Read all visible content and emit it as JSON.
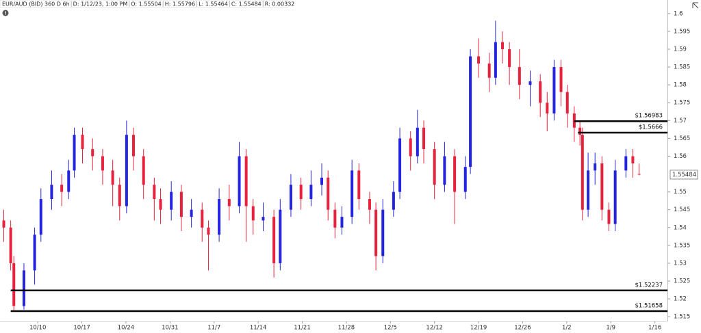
{
  "header": {
    "items": [
      "EUR/AUD (BID) 360 D 6h",
      "D: 1/12/23, 1:00 PM",
      "O: 1.55504",
      "H: 1.55796",
      "L: 1.55464",
      "C: 1.55484",
      "R: 0.00332"
    ]
  },
  "chart_data": {
    "type": "candlestick",
    "up_color": "#2424e0",
    "down_color": "#e8213c",
    "xlim": [
      -6,
      100
    ],
    "ylim": [
      1.5137,
      1.6038
    ],
    "xticks": [
      {
        "value": 0,
        "label": "10/10"
      },
      {
        "value": 7,
        "label": "10/17"
      },
      {
        "value": 14,
        "label": "10/24"
      },
      {
        "value": 21,
        "label": "10/31"
      },
      {
        "value": 28,
        "label": "11/7"
      },
      {
        "value": 35,
        "label": "11/14"
      },
      {
        "value": 42,
        "label": "11/21"
      },
      {
        "value": 49,
        "label": "11/28"
      },
      {
        "value": 56,
        "label": "12/5"
      },
      {
        "value": 63,
        "label": "12/12"
      },
      {
        "value": 70,
        "label": "12/19"
      },
      {
        "value": 77,
        "label": "12/26"
      },
      {
        "value": 84,
        "label": "1/2"
      },
      {
        "value": 91,
        "label": "1/9"
      },
      {
        "value": 98,
        "label": "1/16"
      }
    ],
    "yticks": [
      1.6,
      1.595,
      1.59,
      1.585,
      1.58,
      1.575,
      1.57,
      1.565,
      1.56,
      1.55,
      1.545,
      1.54,
      1.535,
      1.53,
      1.525,
      1.52,
      1.515
    ],
    "last_price_label": "1.55484",
    "x": [
      -5.4,
      -4.3,
      -3.8,
      -2.2,
      -0.5,
      0.5,
      2.2,
      3.8,
      4.9,
      5.8,
      7.1,
      8.7,
      10.3,
      11.9,
      13.0,
      14.1,
      15.2,
      16.8,
      18.5,
      19.5,
      21.2,
      22.8,
      24.4,
      26.1,
      27.1,
      28.8,
      30.4,
      32.0,
      33.1,
      34.2,
      35.8,
      37.5,
      38.5,
      40.2,
      41.8,
      43.4,
      45.1,
      46.1,
      47.2,
      48.3,
      49.9,
      51.0,
      52.7,
      53.7,
      54.8,
      56.5,
      57.5,
      59.2,
      60.3,
      61.3,
      63.0,
      64.6,
      66.2,
      67.9,
      68.7,
      70.0,
      71.7,
      72.7,
      73.8,
      74.9,
      76.5,
      78.2,
      79.8,
      80.9,
      82.0,
      83.1,
      84.1,
      85.2,
      86.1,
      86.5,
      87.4,
      88.5,
      89.6,
      90.7,
      91.7,
      93.4,
      94.5,
      95.5
    ],
    "open": [
      1.542,
      1.54,
      1.53,
      1.518,
      1.528,
      1.538,
      1.548,
      1.552,
      1.55,
      1.556,
      1.566,
      1.562,
      1.56,
      1.556,
      1.552,
      1.546,
      1.566,
      1.56,
      1.552,
      1.548,
      1.545,
      1.55,
      1.543,
      1.545,
      1.54,
      1.538,
      1.548,
      1.546,
      1.56,
      1.546,
      1.542,
      1.543,
      1.53,
      1.545,
      1.552,
      1.548,
      1.552,
      1.554,
      1.545,
      1.54,
      1.543,
      1.556,
      1.548,
      1.545,
      1.532,
      1.545,
      1.55,
      1.565,
      1.56,
      1.568,
      1.562,
      1.552,
      1.56,
      1.55,
      1.557,
      1.588,
      1.586,
      1.582,
      1.592,
      1.59,
      1.585,
      1.58,
      1.581,
      1.575,
      1.572,
      1.585,
      1.578,
      1.572,
      1.568,
      1.566,
      1.545,
      1.556,
      1.558,
      1.545,
      1.541,
      1.556,
      1.56,
      1.55504
    ],
    "high": [
      1.545,
      1.542,
      1.532,
      1.53,
      1.54,
      1.551,
      1.556,
      1.555,
      1.559,
      1.568,
      1.568,
      1.565,
      1.562,
      1.559,
      1.554,
      1.57,
      1.568,
      1.562,
      1.554,
      1.551,
      1.553,
      1.552,
      1.548,
      1.547,
      1.542,
      1.551,
      1.552,
      1.564,
      1.562,
      1.548,
      1.547,
      1.545,
      1.548,
      1.555,
      1.554,
      1.556,
      1.558,
      1.556,
      1.547,
      1.546,
      1.559,
      1.558,
      1.55,
      1.547,
      1.548,
      1.553,
      1.568,
      1.567,
      1.573,
      1.57,
      1.564,
      1.564,
      1.562,
      1.56,
      1.59,
      1.593,
      1.589,
      1.598,
      1.595,
      1.592,
      1.59,
      1.584,
      1.583,
      1.578,
      1.587,
      1.587,
      1.58,
      1.574,
      1.57,
      1.568,
      1.561,
      1.561,
      1.56,
      1.547,
      1.559,
      1.562,
      1.562,
      1.55796
    ],
    "low": [
      1.536,
      1.528,
      1.5166,
      1.517,
      1.524,
      1.536,
      1.545,
      1.546,
      1.548,
      1.554,
      1.558,
      1.556,
      1.552,
      1.546,
      1.542,
      1.544,
      1.556,
      1.548,
      1.542,
      1.541,
      1.542,
      1.539,
      1.54,
      1.536,
      1.528,
      1.536,
      1.542,
      1.544,
      1.536,
      1.538,
      1.539,
      1.526,
      1.528,
      1.543,
      1.545,
      1.546,
      1.549,
      1.542,
      1.537,
      1.538,
      1.541,
      1.545,
      1.541,
      1.528,
      1.53,
      1.543,
      1.548,
      1.556,
      1.558,
      1.558,
      1.548,
      1.55,
      1.541,
      1.548,
      1.555,
      1.582,
      1.578,
      1.58,
      1.586,
      1.58,
      1.576,
      1.574,
      1.571,
      1.567,
      1.57,
      1.574,
      1.568,
      1.564,
      1.563,
      1.542,
      1.543,
      1.552,
      1.542,
      1.539,
      1.539,
      1.554,
      1.554,
      1.55464
    ],
    "close": [
      1.54,
      1.53,
      1.518,
      1.528,
      1.538,
      1.548,
      1.552,
      1.55,
      1.556,
      1.566,
      1.562,
      1.56,
      1.556,
      1.552,
      1.546,
      1.566,
      1.56,
      1.552,
      1.548,
      1.545,
      1.55,
      1.543,
      1.545,
      1.54,
      1.538,
      1.548,
      1.546,
      1.56,
      1.546,
      1.542,
      1.543,
      1.53,
      1.545,
      1.552,
      1.548,
      1.552,
      1.554,
      1.545,
      1.54,
      1.543,
      1.556,
      1.548,
      1.545,
      1.532,
      1.545,
      1.55,
      1.565,
      1.56,
      1.568,
      1.562,
      1.552,
      1.56,
      1.55,
      1.557,
      1.588,
      1.586,
      1.582,
      1.592,
      1.59,
      1.585,
      1.58,
      1.581,
      1.575,
      1.572,
      1.585,
      1.578,
      1.572,
      1.568,
      1.566,
      1.545,
      1.556,
      1.558,
      1.545,
      1.541,
      1.556,
      1.56,
      1.558,
      1.55484
    ],
    "hlines": [
      {
        "value": 1.56983,
        "label": "$1.56983",
        "start": 85.2
      },
      {
        "value": 1.5666,
        "label": "$1.5666",
        "start": 85.8
      },
      {
        "value": 1.52237,
        "label": "$1.52237",
        "start": -4.3
      },
      {
        "value": 1.51658,
        "label": "$1.51658",
        "start": -4.3
      }
    ]
  }
}
